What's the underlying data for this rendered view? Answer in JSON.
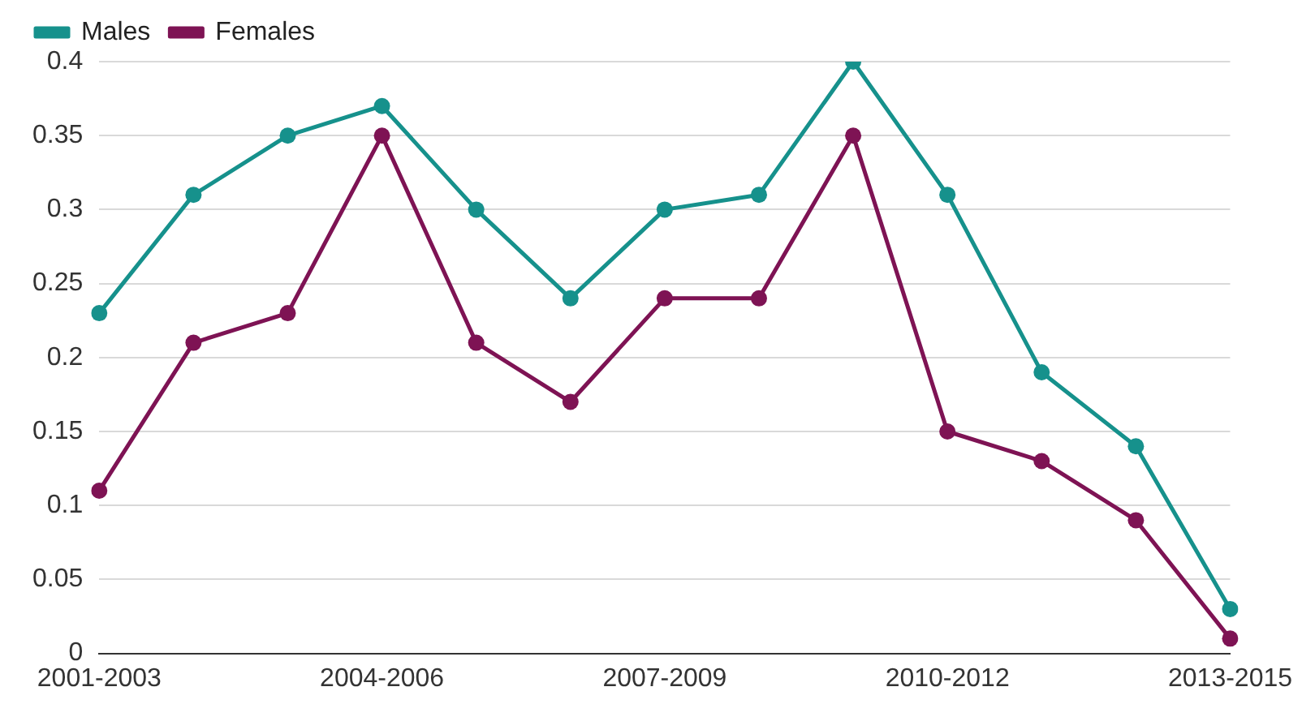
{
  "chart_data": {
    "type": "line",
    "categories": [
      "2001-2003",
      null,
      null,
      "2004-2006",
      null,
      null,
      "2007-2009",
      null,
      null,
      "2010-2012",
      null,
      null,
      "2013-2015"
    ],
    "series": [
      {
        "name": "Males",
        "color": "#16918c",
        "values": [
          0.23,
          0.31,
          0.35,
          0.37,
          0.3,
          0.24,
          0.3,
          0.31,
          0.4,
          0.31,
          0.19,
          0.14,
          0.03
        ]
      },
      {
        "name": "Females",
        "color": "#7e1354",
        "values": [
          0.11,
          0.21,
          0.23,
          0.35,
          0.21,
          0.17,
          0.24,
          0.24,
          0.35,
          0.15,
          0.13,
          0.09,
          0.01
        ]
      }
    ],
    "ylim": [
      0,
      0.4
    ],
    "yticks": [
      0,
      0.05,
      0.1,
      0.15,
      0.2,
      0.25,
      0.3,
      0.35,
      0.4
    ],
    "grid": "y",
    "legend": "top left",
    "marker": "circle",
    "line_style": "solid"
  }
}
